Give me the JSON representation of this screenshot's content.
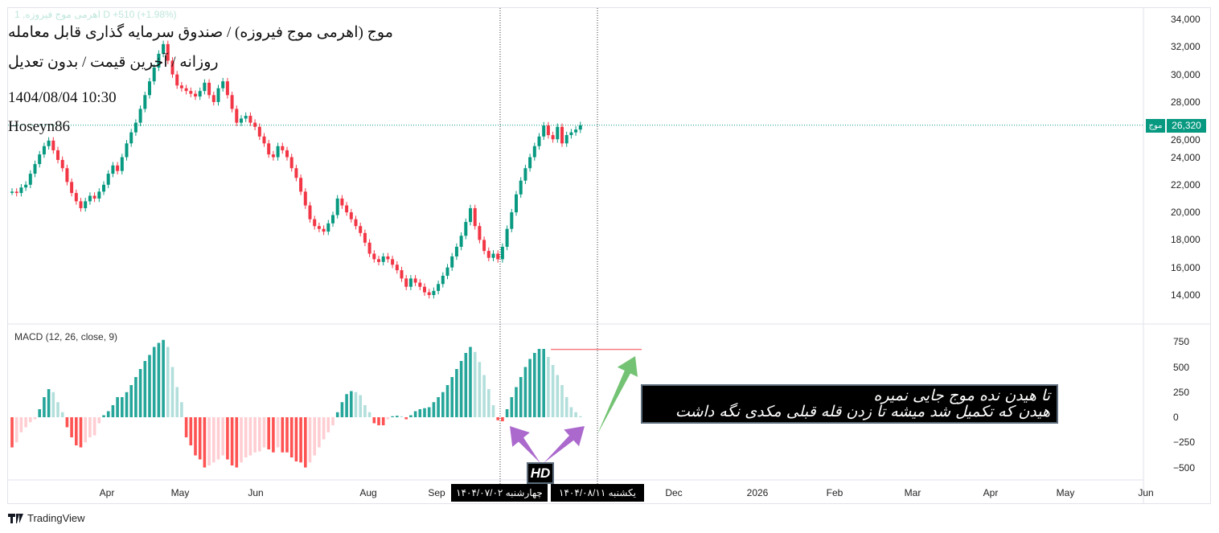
{
  "header": {
    "faint_line": "1 ,اهرمی موج فیروزه D  +510 (+1.98%)",
    "title": "موج (اهرمی موج فیروزه) / صندوق سرمایه گذاری قابل معامله",
    "subtitle": "روزانه / آخرین قیمت / بدون تعدیل",
    "datetime": "1404/08/04 10:30",
    "author": "Hoseyn86"
  },
  "price_badge": {
    "symbol": "موج",
    "value": "26,320",
    "color": "#089981"
  },
  "macd_label": "MACD (12, 26, close, 9)",
  "annotation": {
    "line1": "تا هیدن نده موج جایی نمیره",
    "line2": "هیدن که تکمیل شد  میشه تا زدن قله قبلی مکدی نگه داشت"
  },
  "hd_label": "HD",
  "date_markers": [
    "چهارشنبه ۱۴۰۴/۰۷/۰۲",
    "یکشنبه ۱۴۰۴/۰۸/۱۱"
  ],
  "brand": "TradingView",
  "colors": {
    "up": "#089981",
    "down": "#f23645",
    "hist_up_strong": "#26a69a",
    "hist_up_weak": "#b2dfdb",
    "hist_down_strong": "#ff5252",
    "hist_down_weak": "#ffcdd2",
    "arrow_green": "#5cb85c",
    "arrow_purple": "#9c4fc4",
    "macd_peak_line": "#f77c80"
  },
  "chart_data": {
    "type": "candlestick",
    "price_axis": {
      "ticks": [
        "34,000",
        "32,000",
        "30,000",
        "28,000",
        "26,000",
        "24,000",
        "22,000",
        "20,000",
        "18,000",
        "16,000",
        "14,000"
      ],
      "range": [
        13000,
        34800
      ]
    },
    "macd_axis": {
      "ticks": [
        "750",
        "500",
        "250",
        "0",
        "−250",
        "−500"
      ],
      "range": [
        -650,
        900
      ]
    },
    "time_ticks": [
      "Apr",
      "May",
      "Jun",
      "Aug",
      "Sep",
      "Dec",
      "2026",
      "Feb",
      "Mar",
      "Apr",
      "May",
      "Jun"
    ],
    "last_close": 26320,
    "closes": [
      21500,
      21400,
      21800,
      22000,
      22800,
      23500,
      24200,
      24800,
      25200,
      24500,
      23800,
      23200,
      22200,
      21400,
      20800,
      20300,
      20800,
      21200,
      21000,
      21500,
      22000,
      22800,
      23400,
      23000,
      24000,
      25000,
      25800,
      26500,
      27500,
      28500,
      29500,
      30500,
      31500,
      32200,
      31000,
      30000,
      29200,
      29000,
      28800,
      28600,
      28400,
      28800,
      29400,
      28500,
      28000,
      29000,
      29500,
      28500,
      27500,
      26500,
      26800,
      27000,
      26500,
      26200,
      25500,
      25000,
      24200,
      24000,
      24800,
      24500,
      24000,
      23200,
      22500,
      21500,
      20500,
      19500,
      19000,
      18800,
      18600,
      19200,
      19800,
      21000,
      20500,
      20000,
      19500,
      19000,
      18500,
      17800,
      17000,
      16600,
      16400,
      16800,
      16600,
      16200,
      15800,
      15200,
      14600,
      15200,
      14900,
      14600,
      14200,
      14000,
      14300,
      14800,
      15400,
      16000,
      16800,
      17500,
      18300,
      19300,
      20300,
      19000,
      18000,
      17200,
      16700,
      17000,
      16600,
      17500,
      18800,
      20000,
      21300,
      22300,
      23200,
      24000,
      24800,
      25500,
      26300,
      25600,
      25300,
      26200,
      25000,
      25600,
      25800,
      26000,
      26320
    ],
    "macd_histogram": [
      -300,
      -250,
      -150,
      -100,
      -50,
      -20,
      80,
      200,
      280,
      250,
      150,
      50,
      -100,
      -200,
      -280,
      -300,
      -250,
      -200,
      -180,
      -60,
      20,
      60,
      120,
      200,
      200,
      250,
      320,
      400,
      480,
      560,
      620,
      700,
      740,
      770,
      700,
      500,
      300,
      150,
      -200,
      -280,
      -380,
      -420,
      -500,
      -480,
      -450,
      -420,
      -380,
      -420,
      -480,
      -500,
      -450,
      -400,
      -380,
      -350,
      -340,
      -300,
      -320,
      -350,
      -300,
      -350,
      -350,
      -400,
      -440,
      -450,
      -500,
      -450,
      -380,
      -300,
      -220,
      -150,
      -80,
      50,
      150,
      230,
      260,
      250,
      220,
      120,
      50,
      -60,
      -80,
      -80,
      -20,
      10,
      15,
      10,
      -20,
      20,
      60,
      80,
      90,
      100,
      150,
      200,
      250,
      320,
      400,
      480,
      560,
      640,
      700,
      650,
      550,
      420,
      280,
      120,
      -30,
      -40,
      80,
      200,
      300,
      400,
      500,
      580,
      640,
      680,
      680,
      600,
      520,
      420,
      320,
      200,
      100,
      50,
      10
    ],
    "macd_reference_level": 675
  }
}
